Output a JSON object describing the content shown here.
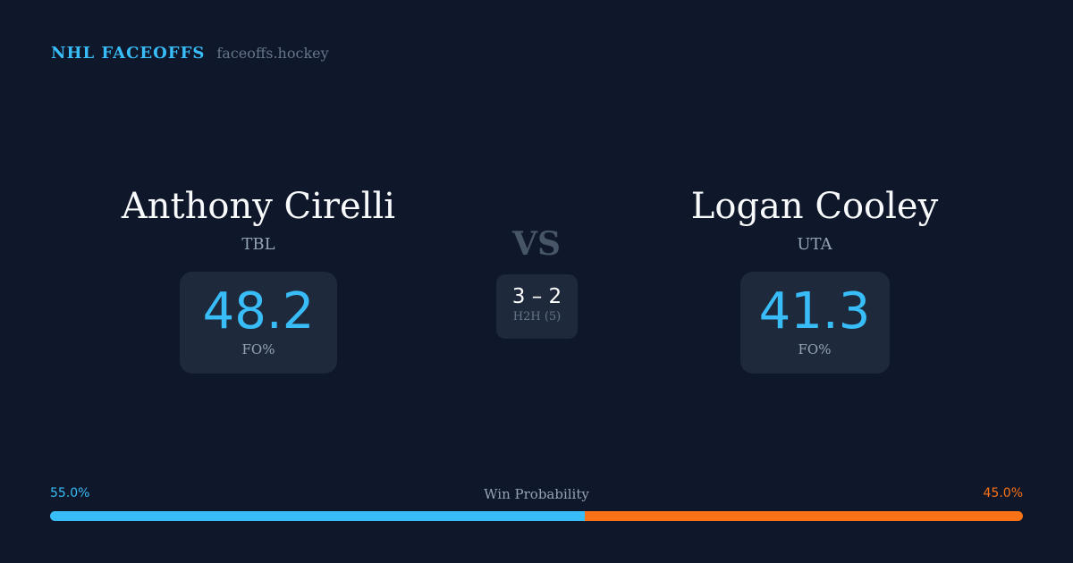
{
  "brand": {
    "title": "NHL FACEOFFS",
    "domain": "faceoffs.hockey"
  },
  "left": {
    "name": "Anthony Cirelli",
    "team": "TBL",
    "fo_pct": "48.2",
    "fo_label": "FO%"
  },
  "right": {
    "name": "Logan Cooley",
    "team": "UTA",
    "fo_pct": "41.3",
    "fo_label": "FO%"
  },
  "vs": "VS",
  "h2h": {
    "score": "3 – 2",
    "label": "H2H (5)"
  },
  "win_probability": {
    "label": "Win Probability",
    "left": "55.0%",
    "right": "45.0%",
    "left_value": 55.0,
    "right_value": 45.0
  },
  "colors": {
    "background": "#0f172a",
    "card": "#1e293b",
    "left_accent": "#38bdf8",
    "right_accent": "#f97316"
  }
}
